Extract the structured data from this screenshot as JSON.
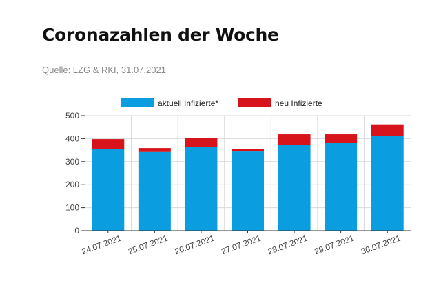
{
  "header": {
    "title": "Coronazahlen der Woche",
    "source": "Quelle: LZG & RKI, 31.07.2021"
  },
  "colors": {
    "series_1": "#0a9de0",
    "series_2": "#d7141c",
    "grid": "#d9d9d9",
    "axis": "#333333"
  },
  "chart_data": {
    "type": "bar",
    "stacked": true,
    "categories": [
      "24.07.2021",
      "25.07.2021",
      "26.07.2021",
      "27.07.2021",
      "28.07.2021",
      "29.07.2021",
      "30.07.2021"
    ],
    "series": [
      {
        "name": "aktuell Infizierte*",
        "values": [
          355,
          342,
          363,
          344,
          372,
          383,
          412
        ]
      },
      {
        "name": "neu Infizierte",
        "values": [
          43,
          17,
          40,
          10,
          47,
          36,
          50
        ]
      }
    ],
    "yticks": [
      0,
      100,
      200,
      300,
      400,
      500
    ],
    "ylim": [
      0,
      500
    ],
    "grid": true,
    "legend": "top"
  }
}
